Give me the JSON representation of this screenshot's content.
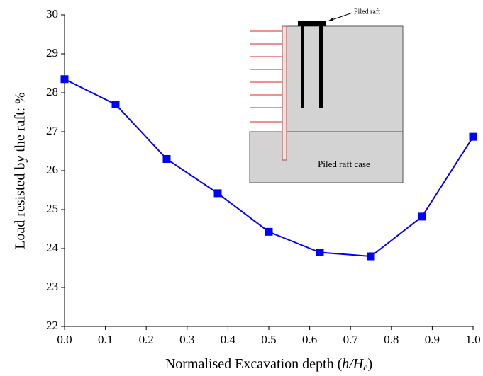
{
  "chart_data": {
    "type": "line",
    "y_label": "Load resisted by the raft: %",
    "x_label": {
      "text": "Normalised Excavation depth (",
      "italic": "h/H",
      "subscript": "e",
      "end": ")"
    },
    "x": [
      0,
      0.125,
      0.25,
      0.375,
      0.5,
      0.625,
      0.75,
      0.875,
      1
    ],
    "series": [
      {
        "color": "#0000ff",
        "values": [
          28.35,
          27.7,
          26.3,
          25.42,
          24.43,
          23.9,
          23.8,
          24.82,
          26.87
        ]
      }
    ],
    "xlim": [
      0,
      1
    ],
    "xticks": [
      {
        "value": 0,
        "label": "0.0"
      },
      0.1,
      0.2,
      0.3,
      0.4,
      0.5,
      0.6,
      0.7,
      0.8,
      0.9,
      {
        "value": 1,
        "label": "1.0"
      }
    ],
    "ylim": [
      22,
      30
    ],
    "yticks": [
      22,
      23,
      24,
      25,
      26,
      27,
      28,
      29,
      30
    ],
    "inset": {
      "raft_label": "Piled raft",
      "case_label": "Piled raft case"
    }
  }
}
